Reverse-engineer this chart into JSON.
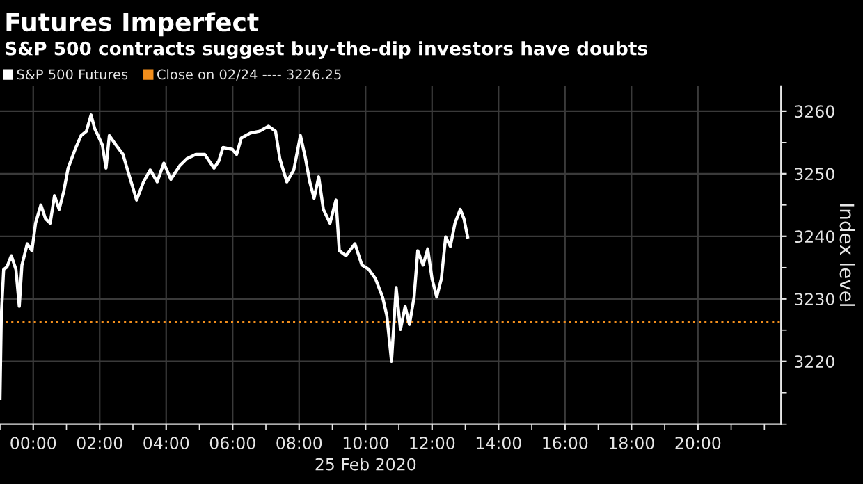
{
  "chart_data": {
    "type": "line",
    "title": "Futures Imperfect",
    "subtitle": "S&P 500 contracts suggest buy-the-dip investors have doubts",
    "xlabel": "25 Feb 2020",
    "ylabel": "Index level",
    "series": [
      {
        "name": "S&P 500 Futures",
        "color": "#ffffff",
        "x": [
          -1.0,
          -0.96,
          -0.89,
          -0.79,
          -0.66,
          -0.52,
          -0.42,
          -0.34,
          -0.18,
          -0.04,
          0.07,
          0.23,
          0.37,
          0.51,
          0.64,
          0.78,
          0.92,
          1.05,
          1.26,
          1.44,
          1.6,
          1.74,
          1.85,
          1.95,
          2.08,
          2.19,
          2.29,
          2.49,
          2.7,
          2.9,
          3.11,
          3.32,
          3.52,
          3.73,
          3.93,
          4.14,
          4.41,
          4.62,
          4.89,
          5.16,
          5.44,
          5.58,
          5.71,
          5.99,
          6.12,
          6.26,
          6.53,
          6.81,
          7.08,
          7.29,
          7.42,
          7.63,
          7.84,
          8.04,
          8.18,
          8.32,
          8.45,
          8.59,
          8.73,
          8.93,
          9.11,
          9.21,
          9.41,
          9.68,
          9.89,
          10.1,
          10.3,
          10.51,
          10.64,
          10.78,
          10.92,
          11.05,
          11.19,
          11.32,
          11.46,
          11.57,
          11.73,
          11.87,
          12.0,
          12.14,
          12.28,
          12.41,
          12.55,
          12.69,
          12.85,
          12.96,
          13.07
        ],
        "values": [
          3214.1,
          3227.3,
          3234.7,
          3235.1,
          3236.9,
          3234.7,
          3228.8,
          3235.4,
          3238.8,
          3237.7,
          3242.1,
          3245.0,
          3242.8,
          3242.1,
          3246.5,
          3244.3,
          3247.2,
          3250.9,
          3253.9,
          3256.1,
          3256.8,
          3259.4,
          3257.2,
          3256.1,
          3254.6,
          3250.9,
          3256.1,
          3254.6,
          3253.1,
          3249.5,
          3245.8,
          3248.7,
          3250.6,
          3248.7,
          3251.7,
          3249.1,
          3251.3,
          3252.4,
          3253.1,
          3253.1,
          3250.9,
          3252.0,
          3254.2,
          3253.9,
          3253.1,
          3255.7,
          3256.5,
          3256.8,
          3257.6,
          3256.8,
          3252.4,
          3248.7,
          3250.6,
          3256.1,
          3252.8,
          3248.7,
          3246.1,
          3249.5,
          3244.3,
          3242.1,
          3245.8,
          3237.7,
          3236.9,
          3238.8,
          3235.4,
          3234.7,
          3233.2,
          3230.3,
          3227.3,
          3220.0,
          3231.8,
          3225.1,
          3228.8,
          3225.9,
          3230.3,
          3237.7,
          3235.4,
          3238.0,
          3233.2,
          3230.3,
          3233.2,
          3239.9,
          3238.4,
          3242.1,
          3244.3,
          3242.8,
          3239.9
        ]
      }
    ],
    "ref_lines": [
      {
        "axis": "y",
        "value": 3226.25,
        "label": "Close on 02/24 ---- 3226.25",
        "color": "#f28e1c",
        "line_style": "dotted"
      }
    ],
    "xlim": [
      -1,
      22.5
    ],
    "xticks": [
      {
        "value": 0,
        "label": "00:00"
      },
      {
        "value": 2,
        "label": "02:00"
      },
      {
        "value": 4,
        "label": "04:00"
      },
      {
        "value": 6,
        "label": "06:00"
      },
      {
        "value": 8,
        "label": "08:00"
      },
      {
        "value": 10,
        "label": "10:00"
      },
      {
        "value": 12,
        "label": "12:00"
      },
      {
        "value": 14,
        "label": "14:00"
      },
      {
        "value": 16,
        "label": "16:00"
      },
      {
        "value": 18,
        "label": "18:00"
      },
      {
        "value": 20,
        "label": "20:00"
      }
    ],
    "ylim": [
      3210,
      3264
    ],
    "yticks": [
      3220,
      3230,
      3240,
      3250,
      3260
    ],
    "grid": true,
    "legend": "top left",
    "marker": "none",
    "line_style": "solid"
  }
}
